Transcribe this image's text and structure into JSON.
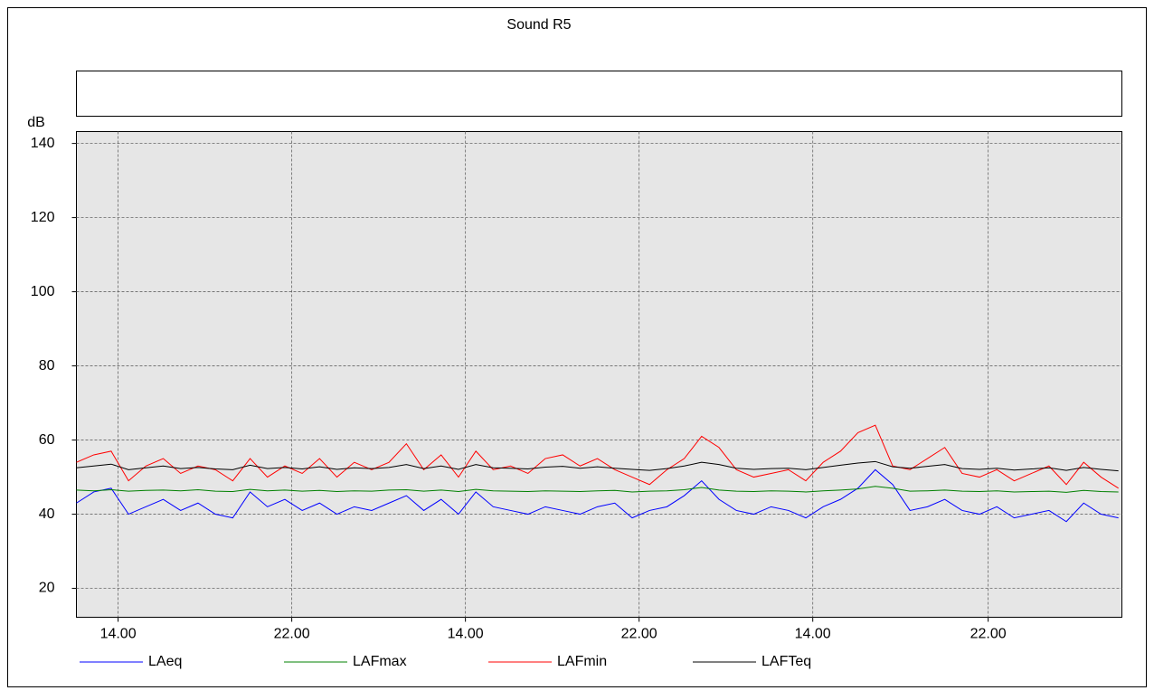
{
  "chart_data": {
    "type": "line",
    "title": "Sound R5",
    "ylabel": "dB",
    "x": [
      0,
      0.1,
      0.2,
      0.3,
      0.4,
      0.5,
      0.6,
      0.7,
      0.8,
      0.9,
      1.0,
      1.1,
      1.2,
      1.3,
      1.4,
      1.5,
      1.6,
      1.7,
      1.8,
      1.9,
      2.0,
      2.1,
      2.2,
      2.3,
      2.4,
      2.5,
      2.6,
      2.7,
      2.8,
      2.9,
      3.0,
      3.1,
      3.2,
      3.3,
      3.4,
      3.5,
      3.6,
      3.7,
      3.8,
      3.9,
      4.0,
      4.1,
      4.2,
      4.3,
      4.4,
      4.5,
      4.6,
      4.7,
      4.8,
      4.9,
      5.0,
      5.1,
      5.2,
      5.3,
      5.4,
      5.5,
      5.6,
      5.7,
      5.8,
      5.9,
      6.0
    ],
    "series": [
      {
        "name": "LAeq",
        "color": "#0000ff",
        "values": [
          43,
          46,
          47,
          40,
          42,
          44,
          41,
          43,
          40,
          39,
          46,
          42,
          44,
          41,
          43,
          40,
          42,
          41,
          43,
          45,
          41,
          44,
          40,
          46,
          42,
          41,
          40,
          42,
          41,
          40,
          42,
          43,
          39,
          41,
          42,
          45,
          49,
          44,
          41,
          40,
          42,
          41,
          39,
          42,
          44,
          47,
          52,
          48,
          41,
          42,
          44,
          41,
          40,
          42,
          39,
          40,
          41,
          38,
          43,
          40,
          39
        ]
      },
      {
        "name": "LAFmax",
        "color": "#008000",
        "values": [
          46.5,
          46.3,
          46.6,
          46.2,
          46.4,
          46.5,
          46.3,
          46.6,
          46.2,
          46.1,
          46.7,
          46.3,
          46.5,
          46.2,
          46.4,
          46.1,
          46.3,
          46.2,
          46.5,
          46.6,
          46.2,
          46.5,
          46.1,
          46.7,
          46.3,
          46.2,
          46.1,
          46.3,
          46.2,
          46.1,
          46.3,
          46.4,
          46,
          46.2,
          46.3,
          46.6,
          47.2,
          46.5,
          46.2,
          46.1,
          46.3,
          46.2,
          46,
          46.3,
          46.5,
          46.8,
          47.5,
          47,
          46.2,
          46.3,
          46.5,
          46.2,
          46.1,
          46.3,
          46,
          46.1,
          46.2,
          45.9,
          46.4,
          46.1,
          46
        ]
      },
      {
        "name": "LAFmin",
        "color": "#ff0000",
        "values": [
          54,
          56,
          57,
          49,
          53,
          55,
          51,
          53,
          52,
          49,
          55,
          50,
          53,
          51,
          55,
          50,
          54,
          52,
          54,
          59,
          52,
          56,
          50,
          57,
          52,
          53,
          51,
          55,
          56,
          53,
          55,
          52,
          50,
          48,
          52,
          55,
          61,
          58,
          52,
          50,
          51,
          52,
          49,
          54,
          57,
          62,
          64,
          53,
          52,
          55,
          58,
          51,
          50,
          52,
          49,
          51,
          53,
          48,
          54,
          50,
          47
        ]
      },
      {
        "name": "LAFTeq",
        "color": "#000000",
        "values": [
          52.5,
          53,
          53.5,
          52,
          52.5,
          53,
          52.3,
          52.6,
          52.2,
          52,
          53.2,
          52.3,
          52.6,
          52.2,
          52.8,
          52.1,
          52.5,
          52.3,
          52.6,
          53.4,
          52.3,
          53,
          52.1,
          53.4,
          52.5,
          52.4,
          52.2,
          52.7,
          52.9,
          52.4,
          52.8,
          52.4,
          52.1,
          51.8,
          52.3,
          53,
          54,
          53.4,
          52.4,
          52.1,
          52.3,
          52.4,
          52,
          52.6,
          53.2,
          53.8,
          54.2,
          52.8,
          52.4,
          52.9,
          53.4,
          52.3,
          52.1,
          52.4,
          51.9,
          52.2,
          52.5,
          51.8,
          52.6,
          52.1,
          51.7
        ]
      }
    ],
    "xlim": [
      0,
      6.02
    ],
    "xticks": [
      {
        "value": 0.24,
        "label": "14.00"
      },
      {
        "value": 1.24,
        "label": "22.00"
      },
      {
        "value": 2.24,
        "label": "14.00"
      },
      {
        "value": 3.24,
        "label": "22.00"
      },
      {
        "value": 4.24,
        "label": "14.00"
      },
      {
        "value": 5.25,
        "label": "22.00"
      }
    ],
    "ylim": [
      12.2,
      143.2
    ],
    "yticks": [
      20,
      40,
      60,
      80,
      100,
      120,
      140
    ],
    "grid": true,
    "legend": "bottom"
  }
}
